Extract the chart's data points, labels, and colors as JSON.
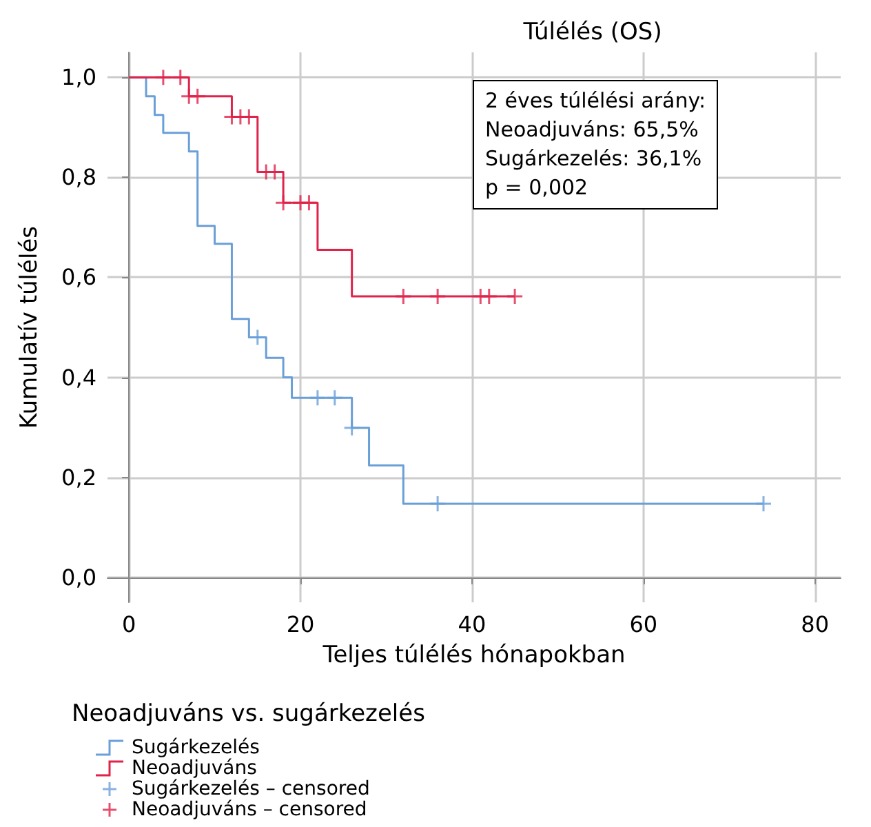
{
  "chart_data": {
    "type": "step",
    "title": "Túlélés (OS)",
    "xlabel": "Teljes túlélés hónapokban",
    "ylabel": "Kumulatív túlélés",
    "legend_title": "Neoadjuváns vs. sugárkezelés",
    "annotations": [
      "2 éves túlélési arány:",
      "Neoadjuváns: 65,5%",
      "Sugárkezelés: 36,1%",
      "p = 0,002"
    ],
    "series": [
      {
        "name": "Sugárkezelés",
        "color": "#6a9fd8",
        "x": [
          0,
          2,
          3,
          4,
          7,
          8,
          10,
          12,
          14,
          16,
          18,
          19,
          26,
          28,
          32,
          74
        ],
        "values": [
          1.0,
          0.962,
          0.925,
          0.889,
          0.852,
          0.703,
          0.667,
          0.517,
          0.48,
          0.439,
          0.4,
          0.359,
          0.299,
          0.224,
          0.147,
          0.147
        ]
      },
      {
        "name": "Neoadjuváns",
        "color": "#e0234a",
        "x": [
          0,
          7,
          12,
          15,
          18,
          22,
          26,
          45
        ],
        "values": [
          1.0,
          0.962,
          0.921,
          0.811,
          0.749,
          0.655,
          0.562,
          0.562
        ]
      },
      {
        "name": "Sugárkezelés – censored",
        "type": "scatter",
        "marker": "cross",
        "color": "#6a9fd8",
        "x": [
          15,
          22,
          24,
          26,
          36,
          74
        ],
        "values": [
          0.48,
          0.359,
          0.359,
          0.299,
          0.147,
          0.147
        ]
      },
      {
        "name": "Neoadjuváns – censored",
        "type": "scatter",
        "marker": "cross",
        "color": "#e0234a",
        "x": [
          4,
          6,
          7,
          8,
          12,
          13,
          14,
          16,
          17,
          18,
          20,
          21,
          32,
          36,
          41,
          42,
          45
        ],
        "values": [
          1.0,
          1.0,
          0.962,
          0.962,
          0.921,
          0.921,
          0.921,
          0.811,
          0.811,
          0.749,
          0.749,
          0.749,
          0.562,
          0.562,
          0.562,
          0.562,
          0.562
        ]
      }
    ],
    "xlim": [
      -2.5,
      83
    ],
    "xticks": [
      0,
      20,
      40,
      60,
      80
    ],
    "ylim": [
      -0.05,
      1.05
    ],
    "yticks": [
      {
        "value": 0,
        "label": "0,0"
      },
      {
        "value": 0.2,
        "label": "0,2"
      },
      {
        "value": 0.4,
        "label": "0,4"
      },
      {
        "value": 0.6,
        "label": "0,6"
      },
      {
        "value": 0.8,
        "label": "0,8"
      },
      {
        "value": 1.0,
        "label": "1,0"
      }
    ],
    "grid": true,
    "legend": "bottom left"
  }
}
